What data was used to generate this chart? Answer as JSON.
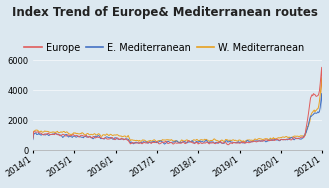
{
  "title": "Index Trend of Europe& Mediterranean routes",
  "legend_labels": [
    "Europe",
    "E. Mediterranean",
    "W. Mediterranean"
  ],
  "line_colors": [
    "#e05c5c",
    "#4472c4",
    "#e8a020"
  ],
  "background_color": "#dce8f0",
  "ylim": [
    0,
    6500
  ],
  "yticks": [
    0,
    2000,
    4000,
    6000
  ],
  "xtick_labels": [
    "2014/1",
    "2015/1",
    "2016/1",
    "2017/1",
    "2018/1",
    "2019/1",
    "2020/1",
    "2021/1"
  ],
  "title_fontsize": 8.5,
  "legend_fontsize": 7,
  "tick_fontsize": 6
}
